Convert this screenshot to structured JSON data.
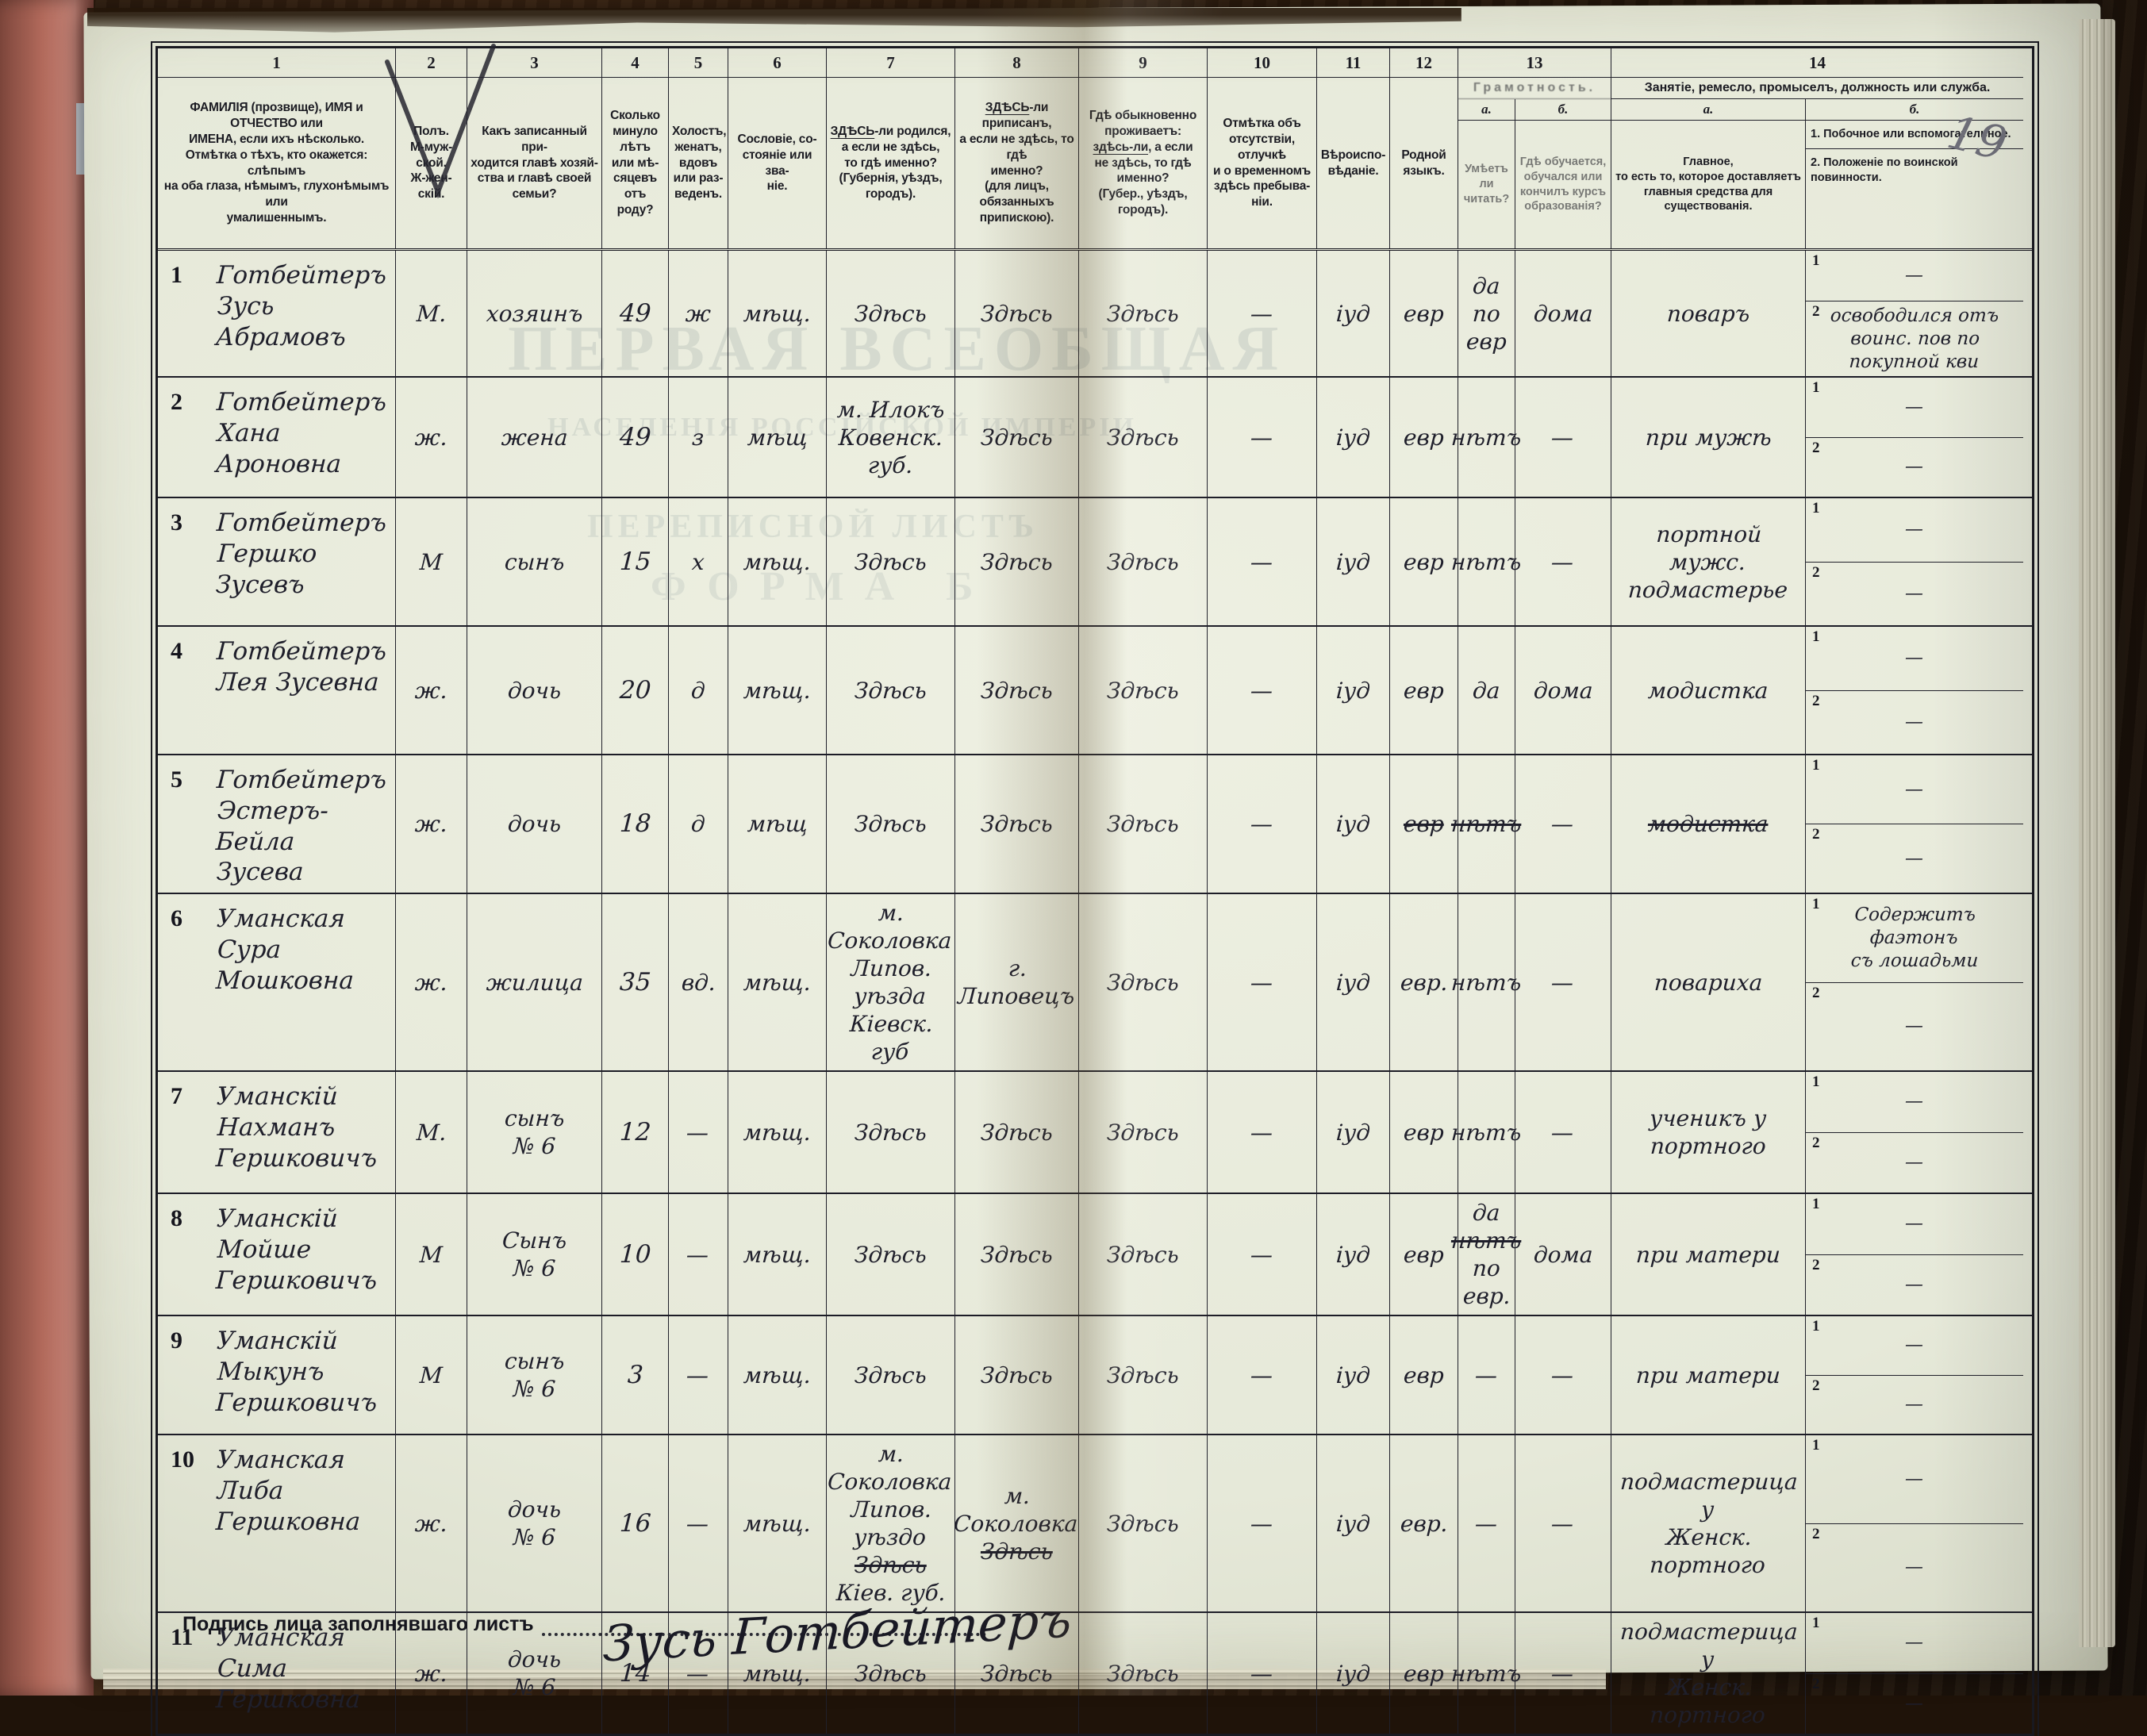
{
  "page_label": "19",
  "columns": {
    "c1": {
      "num": "1",
      "text": "ФАМИЛІЯ (прозвище), ИМЯ и ОТЧЕСТВО или\nИМЕНА, если ихъ нѣсколько.\nОтмѣтка о тѣхъ, кто окажется: слѣпымъ\nна оба глаза, нѣмымъ, глухонѣмымъ или\nумалишеннымъ."
    },
    "c2": {
      "num": "2",
      "text": "Полъ.\nМ-муж-\nской.\nЖ-жен-\nскій."
    },
    "c3": {
      "num": "3",
      "text": "Какъ записанный при-\nходится главѣ хозяй-\nства и главѣ своей\nсемьи?"
    },
    "c4": {
      "num": "4",
      "text": "Сколько\nминуло\nлѣтъ\nили мѣ-\nсяцевъ\nотъ роду?"
    },
    "c5": {
      "num": "5",
      "text": "Холостъ,\nженатъ,\nвдовъ\nили раз-\nведенъ."
    },
    "c6": {
      "num": "6",
      "text": "Сословіе, со-\nстояніе или зва-\nніе."
    },
    "c7": {
      "num": "7",
      "text": "_ЗДѢСЬ_-ли родился,\nа если не здѣсь,\nто гдѣ именно?\n(Губернія, уѣздъ, городъ)."
    },
    "c8": {
      "num": "8",
      "text": "_ЗДѢСЬ_-ли приписанъ,\nа если не здѣсь, то гдѣ\nименно?\n(для лицъ, обязанныхъ\nприпискою)."
    },
    "c9": {
      "num": "9",
      "text": "Гдѣ обыкновенно\nпроживаетъ:\n_здѣсь-ли_, а если\nне здѣсь, то гдѣ\nименно?\n(Губер., уѣздъ, городъ)."
    },
    "c10": {
      "num": "10",
      "text": "Отмѣтка объ\nотсутствіи, отлучкѣ\nи о временномъ\nздѣсь пребыва-\nніи."
    },
    "c11": {
      "num": "11",
      "text": "Вѣроиспо-\nвѣданіе."
    },
    "c12": {
      "num": "12",
      "text": "Родной\nязыкъ."
    },
    "c13": {
      "num": "13",
      "title": "Грамотность.",
      "a_num": "а.",
      "a_text": "Умѣетъ\nли\nчитать?",
      "b_num": "б.",
      "b_text": "Гдѣ обучается,\nобучался или\nкончилъ курсъ\nобразованія?"
    },
    "c14": {
      "num": "14",
      "title": "Занятіе, ремесло, промыселъ, должность или служба.",
      "a_num": "а.",
      "a_text": "Главное,\nто есть то, которое доставляетъ\nглавныя средства для существованія.",
      "b_num": "б.",
      "b_text_1": "1.  Побочное или вспомогательное.",
      "b_text_2": "2.  Положеніе по воинской повинности."
    }
  },
  "table": {
    "side_tags": [
      "1",
      "2"
    ]
  },
  "rows": [
    {
      "n": "1",
      "name": "Готбейтеръ\nЗусь Абрамовъ",
      "sex": "М.",
      "rel": "хозяинъ",
      "age": "49",
      "mar": "ж",
      "est": "мѣщ.",
      "born": "Здѣсь",
      "reg": "Здѣсь",
      "res": "Здѣсь",
      "abs": "—",
      "faith": "іуд",
      "lang": "евр",
      "lit_a": "да\nпо\nевр",
      "lit_b": "дома",
      "occ": "поваръ",
      "side1": "—",
      "side2": "освободился отъ\nвоинс. пов по покупной кви"
    },
    {
      "n": "2",
      "name": "Готбейтеръ\nХана Ароновна",
      "sex": "ж.",
      "rel": "жена",
      "age": "49",
      "mar": "з",
      "est": "мѣщ",
      "born": "м. Илокъ\nКовенск.\nгуб.",
      "reg": "Здѣсь",
      "res": "Здѣсь",
      "abs": "—",
      "faith": "іуд",
      "lang": "евр",
      "lit_a": "нѣтъ",
      "lit_b": "—",
      "occ": "при мужѣ",
      "side1": "—",
      "side2": "—"
    },
    {
      "n": "3",
      "name": "Готбейтеръ\nГершко Зусевъ",
      "sex": "М",
      "rel": "сынъ",
      "age": "15",
      "mar": "х",
      "est": "мѣщ.",
      "born": "Здѣсь",
      "reg": "Здѣсь",
      "res": "Здѣсь",
      "abs": "—",
      "faith": "іуд",
      "lang": "евр",
      "lit_a": "нѣтъ",
      "lit_b": "—",
      "occ": "портной мужс.\nподмастерье",
      "side1": "—",
      "side2": "—"
    },
    {
      "n": "4",
      "name": "Готбейтеръ\nЛея Зусевна",
      "sex": "ж.",
      "rel": "дочь",
      "age": "20",
      "mar": "д",
      "est": "мѣщ.",
      "born": "Здѣсь",
      "reg": "Здѣсь",
      "res": "Здѣсь",
      "abs": "—",
      "faith": "іуд",
      "lang": "евр",
      "lit_a": "да",
      "lit_b": "дома",
      "occ": "модистка",
      "side1": "—",
      "side2": "—"
    },
    {
      "n": "5",
      "name": "Готбейтеръ\nЭстеръ-Бейла\nЗусева",
      "sex": "ж.",
      "rel": "дочь",
      "age": "18",
      "mar": "д",
      "est": "мѣщ",
      "born": "Здѣсь",
      "reg": "Здѣсь",
      "res": "Здѣсь",
      "abs": "—",
      "faith": "іуд",
      "lang": "~евр~",
      "lit_a": "~нѣтъ~",
      "lit_b": "—",
      "occ": "~модистка~",
      "side1": "—",
      "side2": "—"
    },
    {
      "n": "6",
      "name": "Уманская\nСура Мошковна",
      "sex": "ж.",
      "rel": "жилица",
      "age": "35",
      "mar": "вд.",
      "est": "мѣщ.",
      "born": "м. Соколовка\nЛипов. уѣзда\nКіевск. губ",
      "reg": "г. Липовецъ",
      "res": "Здѣсь",
      "abs": "—",
      "faith": "іуд",
      "lang": "евр.",
      "lit_a": "нѣтъ",
      "lit_b": "—",
      "occ": "повариха",
      "side1": "Содержитъ фаэтонъ\nсъ лошадьми",
      "side2": "—"
    },
    {
      "n": "7",
      "name": "Уманскій\nНахманъ Гершковичъ",
      "sex": "М.",
      "rel": "сынъ\n№ 6",
      "age": "12",
      "mar": "—",
      "est": "мѣщ.",
      "born": "Здѣсь",
      "reg": "Здѣсь",
      "res": "Здѣсь",
      "abs": "—",
      "faith": "іуд",
      "lang": "евр",
      "lit_a": "нѣтъ",
      "lit_b": "—",
      "occ": "ученикъ у\nпортного",
      "side1": "—",
      "side2": "—"
    },
    {
      "n": "8",
      "name": "Уманскій\nМойше Гершковичъ",
      "sex": "М",
      "rel": "Сынъ\n№ 6",
      "age": "10",
      "mar": "—",
      "est": "мѣщ.",
      "born": "Здѣсь",
      "reg": "Здѣсь",
      "res": "Здѣсь",
      "abs": "—",
      "faith": "іуд",
      "lang": "евр",
      "lit_a": "да\n~нѣтъ~\nпо\nевр.",
      "lit_b": "дома",
      "occ": "при матери",
      "side1": "—",
      "side2": "—"
    },
    {
      "n": "9",
      "name": "Уманскій\nМыкунъ Гершковичъ",
      "sex": "М",
      "rel": "сынъ\n№ 6",
      "age": "3",
      "mar": "—",
      "est": "мѣщ.",
      "born": "Здѣсь",
      "reg": "Здѣсь",
      "res": "Здѣсь",
      "abs": "—",
      "faith": "іуд",
      "lang": "евр",
      "lit_a": "—",
      "lit_b": "—",
      "occ": "при матери",
      "side1": "—",
      "side2": "—"
    },
    {
      "n": "10",
      "name": "Уманская\nЛиба Гершковна",
      "sex": "ж.",
      "rel": "дочь\n№ 6",
      "age": "16",
      "mar": "—",
      "est": "мѣщ.",
      "born": "м. Соколовка\nЛипов. уѣздо\n~Здѣсь~\nКіев. губ.",
      "reg": "м. Соколовка\n~Здѣсь~",
      "res": "Здѣсь",
      "abs": "—",
      "faith": "іуд",
      "lang": "евр.",
      "lit_a": "—",
      "lit_b": "—",
      "occ": "подмастерица у\nЖенск. портного",
      "side1": "—",
      "side2": "—"
    },
    {
      "n": "11",
      "name": "Уманская\nСима Гершковна",
      "sex": "ж.",
      "rel": "дочь\n№ 6",
      "age": "14",
      "mar": "—",
      "est": "мѣщ.",
      "born": "Здѣсь",
      "reg": "Здѣсь",
      "res": "Здѣсь",
      "abs": "—",
      "faith": "іуд",
      "lang": "евр",
      "lit_a": "нѣтъ",
      "lit_b": "—",
      "occ": "подмастерица у\nЖенск. портного",
      "side1": "—",
      "side2": "—"
    }
  ],
  "footer": {
    "sig_label": "Подпись лица заполнявшаго листъ",
    "signature": "Зусь Готбейтеръ"
  },
  "ghost": [
    "ПЕРВАЯ ВСЕОБЩАЯ",
    "НАСЕЛЕНІЯ РОССІЙСКОЙ ИМПЕРІИ",
    "ПЕРЕПИСНОЙ ЛИСТЪ",
    "ФОРМА Б"
  ]
}
